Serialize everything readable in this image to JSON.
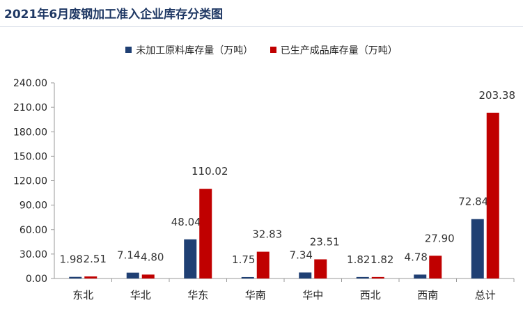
{
  "chart_data": {
    "type": "bar",
    "title": "2021年6月废钢加工准入企业库存分类图",
    "categories": [
      "东北",
      "华北",
      "华东",
      "华南",
      "华中",
      "西北",
      "西南",
      "总计"
    ],
    "series": [
      {
        "name": "未加工原料库存量（万吨）",
        "color": "#1f3f73",
        "values": [
          1.98,
          7.14,
          48.04,
          1.75,
          7.34,
          1.82,
          4.78,
          72.84
        ],
        "labels": [
          "1.98",
          "7.14",
          "48.04",
          "1.75",
          "7.34",
          "1.82",
          "4.78",
          "72.84"
        ]
      },
      {
        "name": "已生产成品库存量（万吨）",
        "color": "#c00000",
        "values": [
          2.51,
          4.8,
          110.02,
          32.83,
          23.51,
          1.82,
          27.9,
          203.38
        ],
        "labels": [
          "2.51",
          "4.80",
          "110.02",
          "32.83",
          "23.51",
          "1.82",
          "27.90",
          "203.38"
        ]
      }
    ],
    "ylim": [
      0,
      240
    ],
    "yticks": [
      "0.00",
      "30.00",
      "60.00",
      "90.00",
      "120.00",
      "150.00",
      "180.00",
      "210.00",
      "240.00"
    ],
    "xlabel": "",
    "ylabel": "",
    "legend_position": "top",
    "grid": false
  }
}
